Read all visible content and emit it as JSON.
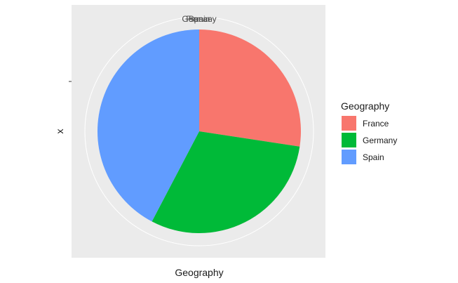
{
  "chart_data": {
    "type": "pie",
    "xlabel": "Geography",
    "ylabel": "x",
    "theta_tick_labels": [
      "France",
      "Germany",
      "Spain"
    ],
    "legend": {
      "title": "Geography",
      "placement": "right"
    },
    "categories": [
      "France",
      "Germany",
      "Spain"
    ],
    "values": [
      27.4,
      30.3,
      42.3
    ],
    "colors": {
      "France": "#F8766D",
      "Germany": "#00BA38",
      "Spain": "#619CFF"
    },
    "start_angle_deg": 0,
    "direction": "clockwise",
    "panel_background": "#EBEBEB",
    "grid": true
  }
}
